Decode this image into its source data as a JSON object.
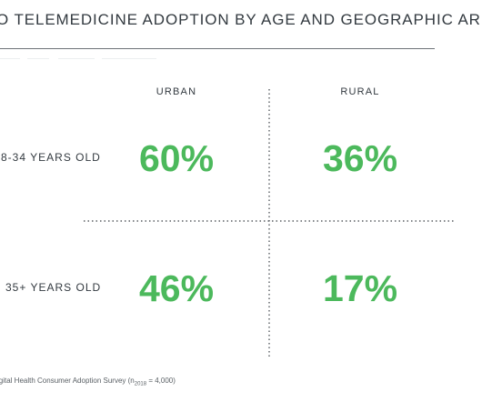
{
  "title": "O TELEMEDICINE ADOPTION BY AGE AND GEOGRAPHIC AREA",
  "chart_data": {
    "type": "table",
    "columns": [
      "URBAN",
      "RURAL"
    ],
    "rows": [
      {
        "label": "8-34 YEARS OLD",
        "values": [
          "60%",
          "36%"
        ]
      },
      {
        "label": "35+ YEARS OLD",
        "values": [
          "46%",
          "17%"
        ]
      }
    ],
    "values_numeric": [
      [
        60,
        36
      ],
      [
        46,
        17
      ]
    ],
    "value_color": "#4cb95c"
  },
  "footnote": {
    "prefix": "igital Health Consumer Adoption Survey (n",
    "subscript": "2018",
    "suffix": " = 4,000)"
  }
}
